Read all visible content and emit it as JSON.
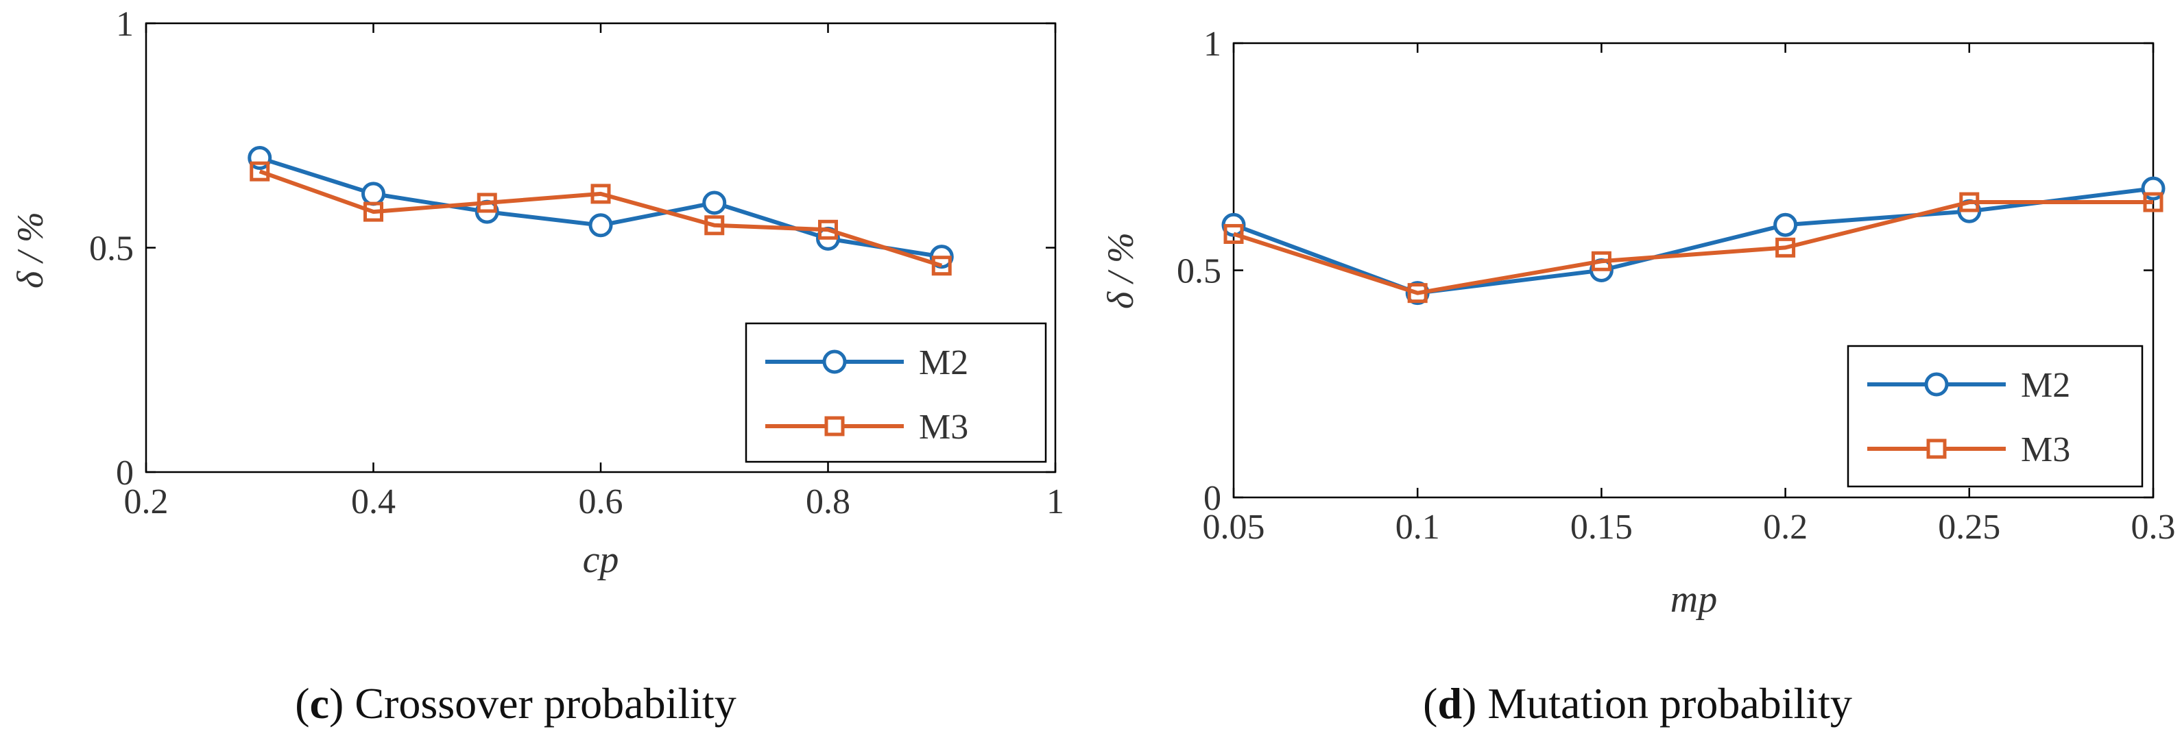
{
  "colors": {
    "m2": "#1f6fb4",
    "m3": "#d95f2a",
    "axis": "#000000",
    "text": "#333333"
  },
  "chart_data": [
    {
      "type": "line",
      "panel_letter": "c",
      "caption": " Crossover probability",
      "xlabel": "cp",
      "ylabel": "δ / %",
      "xlim": [
        0.2,
        1
      ],
      "ylim": [
        0,
        1
      ],
      "xticks": [
        0.2,
        0.4,
        0.6,
        0.8,
        1
      ],
      "xtick_labels": [
        "0.2",
        "0.4",
        "0.6",
        "0.8",
        "1"
      ],
      "yticks": [
        0,
        0.5,
        1
      ],
      "ytick_labels": [
        "0",
        "0.5",
        "1"
      ],
      "legend_position": "bottom-right",
      "x": [
        0.3,
        0.4,
        0.5,
        0.6,
        0.7,
        0.8,
        0.9
      ],
      "series": [
        {
          "name": "M2",
          "marker": "circle",
          "values": [
            0.7,
            0.62,
            0.58,
            0.55,
            0.6,
            0.52,
            0.48
          ]
        },
        {
          "name": "M3",
          "marker": "square",
          "values": [
            0.67,
            0.58,
            0.6,
            0.62,
            0.55,
            0.54,
            0.46
          ]
        }
      ]
    },
    {
      "type": "line",
      "panel_letter": "d",
      "caption": " Mutation probability",
      "xlabel": "mp",
      "ylabel": "δ / %",
      "xlim": [
        0.05,
        0.3
      ],
      "ylim": [
        0,
        1
      ],
      "xticks": [
        0.05,
        0.1,
        0.15,
        0.2,
        0.25,
        0.3
      ],
      "xtick_labels": [
        "0.05",
        "0.1",
        "0.15",
        "0.2",
        "0.25",
        "0.3"
      ],
      "yticks": [
        0,
        0.5,
        1
      ],
      "ytick_labels": [
        "0",
        "0.5",
        "1"
      ],
      "legend_position": "bottom-right",
      "x": [
        0.05,
        0.1,
        0.15,
        0.2,
        0.25,
        0.3
      ],
      "series": [
        {
          "name": "M2",
          "marker": "circle",
          "values": [
            0.6,
            0.45,
            0.5,
            0.6,
            0.63,
            0.68
          ]
        },
        {
          "name": "M3",
          "marker": "square",
          "values": [
            0.58,
            0.45,
            0.52,
            0.55,
            0.65,
            0.65
          ]
        }
      ]
    }
  ]
}
